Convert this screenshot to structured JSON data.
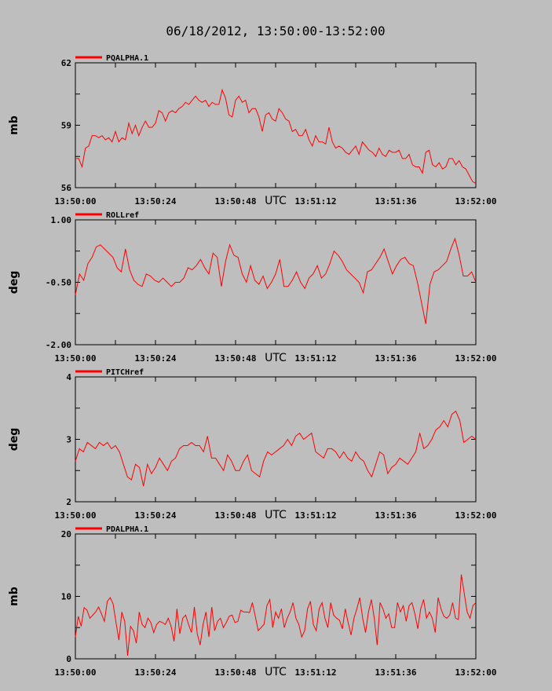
{
  "title": "06/18/2012, 13:50:00-13:52:00",
  "colors": {
    "series": "#ff0000",
    "background": "#bebebe",
    "axes": "#000000"
  },
  "chart_data": [
    {
      "type": "line",
      "legend": "PQALPHA.1",
      "ylabel": "mb",
      "xlabel": "UTC",
      "ylim": [
        56,
        62
      ],
      "yticks": [
        "56",
        "59",
        "62"
      ],
      "ytick_values": [
        56,
        59,
        62
      ],
      "xticks": [
        "13:50:00",
        "13:50:24",
        "13:50:48",
        "13:51:12",
        "13:51:36",
        "13:52:00"
      ],
      "xlim_seconds": [
        0,
        120
      ],
      "series": [
        {
          "values": [
            57.4,
            57.4,
            57.0,
            57.9,
            58.0,
            58.5,
            58.5,
            58.4,
            58.5,
            58.3,
            58.4,
            58.2,
            58.7,
            58.2,
            58.4,
            58.3,
            59.1,
            58.6,
            59.0,
            58.5,
            58.9,
            59.2,
            58.9,
            58.9,
            59.1,
            59.7,
            59.6,
            59.2,
            59.6,
            59.7,
            59.6,
            59.8,
            59.9,
            60.1,
            60.0,
            60.2,
            60.4,
            60.2,
            60.1,
            60.2,
            59.9,
            60.1,
            60.0,
            60.0,
            60.7,
            60.3,
            59.5,
            59.4,
            60.2,
            60.4,
            60.1,
            60.2,
            59.6,
            59.8,
            59.8,
            59.4,
            58.7,
            59.5,
            59.6,
            59.3,
            59.2,
            59.8,
            59.6,
            59.3,
            59.2,
            58.7,
            58.8,
            58.5,
            58.5,
            58.8,
            58.3,
            58.0,
            58.5,
            58.2,
            58.2,
            58.1,
            58.9,
            58.2,
            57.9,
            58.0,
            57.9,
            57.7,
            57.6,
            57.8,
            58.0,
            57.6,
            58.2,
            58.0,
            57.8,
            57.7,
            57.5,
            57.9,
            57.6,
            57.5,
            57.8,
            57.7,
            57.7,
            57.8,
            57.4,
            57.4,
            57.6,
            57.1,
            57.0,
            57.0,
            56.7,
            57.7,
            57.8,
            57.1,
            57.0,
            57.2,
            56.9,
            57.0,
            57.4,
            57.4,
            57.1,
            57.3,
            57.0,
            56.9,
            56.6,
            56.3,
            56.2
          ]
        }
      ]
    },
    {
      "type": "line",
      "legend": "ROLLref",
      "ylabel": "deg",
      "xlabel": "UTC",
      "ylim": [
        -2.0,
        1.0
      ],
      "yticks": [
        "-2.00",
        "-0.50",
        "1.00"
      ],
      "ytick_values": [
        -2.0,
        -0.5,
        1.0
      ],
      "xticks": [
        "13:50:00",
        "13:50:24",
        "13:50:48",
        "13:51:12",
        "13:51:36",
        "13:52:00"
      ],
      "xlim_seconds": [
        0,
        120
      ],
      "series": [
        {
          "values": [
            -0.8,
            -0.3,
            -0.45,
            -0.05,
            0.1,
            0.35,
            0.4,
            0.3,
            0.2,
            0.1,
            -0.15,
            -0.25,
            0.3,
            -0.2,
            -0.45,
            -0.55,
            -0.6,
            -0.3,
            -0.35,
            -0.45,
            -0.5,
            -0.4,
            -0.5,
            -0.6,
            -0.5,
            -0.5,
            -0.4,
            -0.15,
            -0.2,
            -0.1,
            0.05,
            -0.15,
            -0.3,
            0.2,
            0.1,
            -0.6,
            0.0,
            0.4,
            0.15,
            0.1,
            -0.3,
            -0.5,
            -0.1,
            -0.45,
            -0.55,
            -0.35,
            -0.65,
            -0.5,
            -0.3,
            0.05,
            -0.6,
            -0.6,
            -0.45,
            -0.25,
            -0.5,
            -0.65,
            -0.4,
            -0.3,
            -0.1,
            -0.4,
            -0.3,
            -0.05,
            0.25,
            0.15,
            0.0,
            -0.2,
            -0.3,
            -0.4,
            -0.5,
            -0.75,
            -0.25,
            -0.2,
            -0.05,
            0.1,
            0.3,
            0.0,
            -0.3,
            -0.1,
            0.05,
            0.1,
            -0.05,
            -0.1,
            -0.5,
            -1.0,
            -1.5,
            -0.55,
            -0.25,
            -0.2,
            -0.1,
            0.0,
            0.3,
            0.55,
            0.15,
            -0.35,
            -0.35,
            -0.25,
            -0.5
          ]
        }
      ]
    },
    {
      "type": "line",
      "legend": "PITCHref",
      "ylabel": "deg",
      "xlabel": "UTC",
      "ylim": [
        2,
        4
      ],
      "yticks": [
        "2",
        "3",
        "4"
      ],
      "ytick_values": [
        2,
        3,
        4
      ],
      "xticks": [
        "13:50:00",
        "13:50:24",
        "13:50:48",
        "13:51:12",
        "13:51:36",
        "13:52:00"
      ],
      "xlim_seconds": [
        0,
        120
      ],
      "series": [
        {
          "values": [
            2.65,
            2.85,
            2.8,
            2.95,
            2.9,
            2.85,
            2.95,
            2.9,
            2.95,
            2.85,
            2.9,
            2.8,
            2.6,
            2.4,
            2.35,
            2.6,
            2.55,
            2.25,
            2.6,
            2.45,
            2.55,
            2.7,
            2.6,
            2.5,
            2.65,
            2.7,
            2.85,
            2.9,
            2.9,
            2.95,
            2.9,
            2.9,
            2.8,
            3.05,
            2.7,
            2.7,
            2.6,
            2.5,
            2.75,
            2.65,
            2.5,
            2.5,
            2.65,
            2.75,
            2.5,
            2.45,
            2.4,
            2.65,
            2.8,
            2.75,
            2.8,
            2.85,
            2.9,
            3.0,
            2.9,
            3.05,
            3.1,
            3.0,
            3.05,
            3.1,
            2.8,
            2.75,
            2.7,
            2.85,
            2.85,
            2.8,
            2.7,
            2.8,
            2.7,
            2.65,
            2.8,
            2.7,
            2.65,
            2.5,
            2.4,
            2.6,
            2.8,
            2.75,
            2.45,
            2.55,
            2.6,
            2.7,
            2.65,
            2.6,
            2.7,
            2.8,
            3.1,
            2.85,
            2.9,
            3.0,
            3.15,
            3.2,
            3.3,
            3.2,
            3.4,
            3.45,
            3.3,
            2.95,
            3.0,
            3.05,
            3.0
          ]
        }
      ]
    },
    {
      "type": "line",
      "legend": "PDALPHA.1",
      "ylabel": "mb",
      "xlabel": "UTC",
      "ylim": [
        0,
        20
      ],
      "yticks": [
        "0",
        "10",
        "20"
      ],
      "ytick_values": [
        0,
        10,
        20
      ],
      "xticks": [
        "13:50:00",
        "13:50:24",
        "13:50:48",
        "13:51:12",
        "13:51:36",
        "13:52:00"
      ],
      "xlim_seconds": [
        0,
        120
      ],
      "series": [
        {
          "values": [
            3.5,
            6.8,
            5.2,
            8.2,
            7.8,
            6.5,
            7.0,
            7.5,
            8.3,
            7.2,
            6.0,
            9.2,
            9.8,
            8.8,
            5.8,
            3.0,
            7.5,
            6.0,
            0.5,
            5.2,
            4.5,
            2.5,
            7.5,
            5.5,
            5.0,
            6.5,
            5.8,
            4.2,
            5.5,
            6.0,
            5.8,
            5.5,
            6.5,
            5.2,
            2.8,
            8.0,
            4.0,
            6.5,
            7.0,
            5.5,
            4.2,
            8.3,
            4.0,
            2.2,
            5.5,
            7.5,
            3.5,
            8.3,
            4.5,
            6.0,
            6.5,
            5.0,
            5.8,
            6.8,
            7.0,
            5.8,
            6.0,
            7.8,
            7.5,
            7.5,
            7.4,
            9.0,
            6.8,
            4.5,
            5.0,
            5.5,
            8.5,
            9.5,
            5.0,
            7.5,
            6.5,
            8.0,
            5.0,
            6.5,
            7.5,
            9.0,
            6.5,
            5.5,
            3.5,
            4.5,
            8.0,
            9.2,
            5.5,
            4.5,
            8.0,
            9.0,
            6.5,
            5.0,
            9.0,
            7.0,
            6.5,
            6.2,
            4.8,
            8.0,
            5.8,
            3.8,
            6.5,
            8.0,
            9.8,
            6.5,
            4.2,
            7.5,
            9.5,
            6.5,
            2.2,
            9.0,
            8.0,
            6.5,
            7.2,
            5.0,
            5.0,
            9.0,
            7.5,
            8.5,
            6.0,
            8.5,
            9.0,
            7.2,
            4.8,
            8.0,
            9.5,
            6.5,
            7.5,
            6.5,
            4.2,
            9.8,
            8.0,
            6.8,
            6.5,
            7.0,
            9.0,
            6.5,
            6.3,
            13.5,
            10.5,
            7.5,
            6.5,
            8.5,
            9.0
          ]
        }
      ]
    }
  ]
}
